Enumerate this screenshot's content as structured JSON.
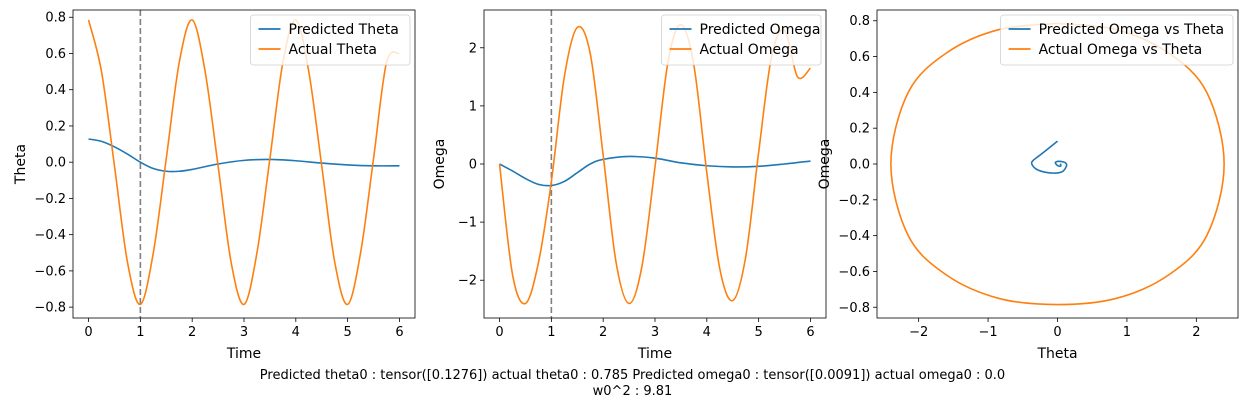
{
  "chart_data": [
    {
      "type": "line",
      "xlabel": "Time",
      "ylabel": "Theta",
      "xlim": [
        -0.3,
        6.3
      ],
      "ylim": [
        -0.86,
        0.84
      ],
      "xticks": [
        "0",
        "1",
        "2",
        "3",
        "4",
        "5",
        "6"
      ],
      "yticks": [
        "−0.8",
        "−0.6",
        "−0.4",
        "−0.2",
        "0.0",
        "0.2",
        "0.4",
        "0.6",
        "0.8"
      ],
      "vline": 1.0,
      "legend_position": "upper right",
      "series": [
        {
          "name": "Predicted Theta",
          "color": "#1f77b4",
          "x": [
            0,
            0.25,
            0.5,
            0.75,
            1.0,
            1.25,
            1.5,
            1.75,
            2.0,
            2.5,
            3.0,
            3.5,
            4.0,
            4.5,
            5.0,
            5.5,
            6.0
          ],
          "y": [
            0.128,
            0.115,
            0.085,
            0.045,
            0.0,
            -0.035,
            -0.05,
            -0.05,
            -0.04,
            -0.01,
            0.01,
            0.015,
            0.008,
            -0.005,
            -0.015,
            -0.02,
            -0.02
          ]
        },
        {
          "name": "Actual Theta",
          "color": "#ff7f0e",
          "x": [
            0,
            0.25,
            0.5,
            0.75,
            1.0,
            1.25,
            1.5,
            1.75,
            2.0,
            2.25,
            2.5,
            2.75,
            3.0,
            3.25,
            3.5,
            3.75,
            4.0,
            4.25,
            4.5,
            4.75,
            5.0,
            5.25,
            5.5,
            5.75,
            6.0
          ],
          "y": [
            0.785,
            0.5,
            -0.02,
            -0.55,
            -0.785,
            -0.5,
            0.02,
            0.55,
            0.785,
            0.5,
            -0.02,
            -0.55,
            -0.785,
            -0.5,
            0.02,
            0.55,
            0.785,
            0.5,
            -0.02,
            -0.55,
            -0.785,
            -0.5,
            0.02,
            0.55,
            0.6
          ]
        }
      ]
    },
    {
      "type": "line",
      "xlabel": "Time",
      "ylabel": "Omega",
      "xlim": [
        -0.3,
        6.3
      ],
      "ylim": [
        -2.65,
        2.65
      ],
      "xticks": [
        "0",
        "1",
        "2",
        "3",
        "4",
        "5",
        "6"
      ],
      "yticks": [
        "−2",
        "−1",
        "0",
        "1",
        "2"
      ],
      "vline": 1.0,
      "legend_position": "upper right",
      "series": [
        {
          "name": "Predicted Omega",
          "color": "#1f77b4",
          "x": [
            0,
            0.25,
            0.5,
            0.75,
            1.0,
            1.25,
            1.5,
            1.75,
            2.0,
            2.5,
            3.0,
            3.5,
            4.0,
            4.5,
            5.0,
            5.5,
            6.0
          ],
          "y": [
            0.0,
            -0.12,
            -0.25,
            -0.35,
            -0.37,
            -0.3,
            -0.15,
            0.0,
            0.08,
            0.13,
            0.1,
            0.02,
            -0.03,
            -0.05,
            -0.04,
            0.0,
            0.05
          ]
        },
        {
          "name": "Actual Omega",
          "color": "#ff7f0e",
          "x": [
            0,
            0.25,
            0.5,
            0.75,
            1.0,
            1.25,
            1.5,
            1.75,
            2.0,
            2.25,
            2.5,
            2.75,
            3.0,
            3.25,
            3.5,
            3.75,
            4.0,
            4.25,
            4.5,
            4.75,
            5.0,
            5.25,
            5.5,
            5.75,
            6.0
          ],
          "y": [
            0.0,
            -1.9,
            -2.4,
            -1.7,
            -0.3,
            1.5,
            2.35,
            1.9,
            0.15,
            -1.7,
            -2.4,
            -1.75,
            -0.05,
            1.75,
            2.4,
            1.7,
            -0.15,
            -1.8,
            -2.35,
            -1.6,
            0.2,
            1.85,
            2.3,
            1.5,
            1.65
          ]
        }
      ]
    },
    {
      "type": "line",
      "xlabel": "Theta",
      "ylabel": "Omega",
      "xlim": [
        -2.6,
        2.6
      ],
      "ylim": [
        -0.86,
        0.86
      ],
      "xticks": [
        "−2",
        "−1",
        "0",
        "1",
        "2"
      ],
      "yticks": [
        "−0.8",
        "−0.6",
        "−0.4",
        "−0.2",
        "0.0",
        "0.2",
        "0.4",
        "0.6",
        "0.8"
      ],
      "legend_position": "upper right",
      "series": [
        {
          "name": "Predicted Omega vs Theta",
          "color": "#1f77b4",
          "x": [
            0.0,
            -0.12,
            -0.25,
            -0.35,
            -0.37,
            -0.3,
            -0.15,
            0.0,
            0.08,
            0.13,
            0.12,
            0.08,
            0.02,
            -0.02,
            -0.03,
            -0.01,
            0.02,
            0.05,
            0.04
          ],
          "y": [
            0.128,
            0.09,
            0.05,
            0.02,
            0.0,
            -0.03,
            -0.048,
            -0.05,
            -0.04,
            -0.01,
            0.005,
            0.012,
            0.015,
            0.012,
            0.005,
            -0.005,
            -0.012,
            -0.01,
            0.002
          ]
        },
        {
          "name": "Actual Omega vs Theta",
          "color": "#ff7f0e",
          "x": [
            0.0,
            0.85,
            1.6,
            2.15,
            2.4,
            2.15,
            1.6,
            0.85,
            0.0,
            -0.85,
            -1.6,
            -2.15,
            -2.4,
            -2.15,
            -1.6,
            -0.85,
            0.0
          ],
          "y": [
            0.785,
            0.75,
            0.62,
            0.4,
            0.0,
            -0.4,
            -0.62,
            -0.75,
            -0.785,
            -0.75,
            -0.62,
            -0.4,
            0.0,
            0.4,
            0.62,
            0.75,
            0.785
          ]
        }
      ]
    }
  ],
  "caption": {
    "line1": "Predicted theta0 : tensor([0.1276]) actual theta0 : 0.785 Predicted omega0 : tensor([0.0091]) actual omega0 : 0.0",
    "line2": "w0^2 : 9.81"
  }
}
